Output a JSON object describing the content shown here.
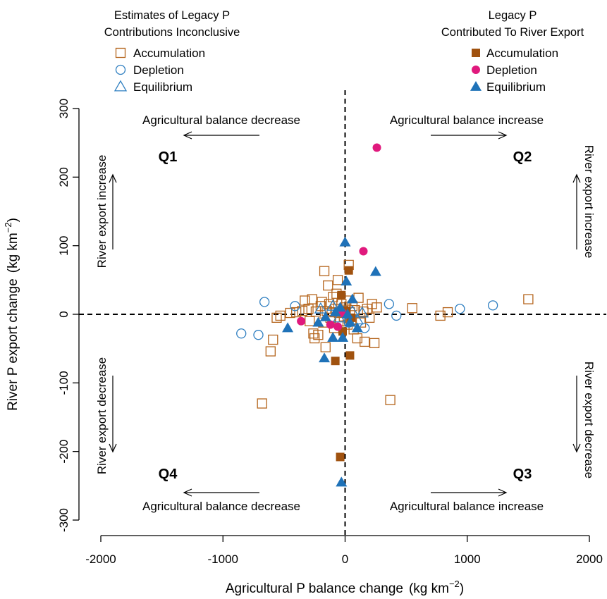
{
  "chart_data": {
    "type": "scatter",
    "xlabel": "Agricultural P balance change",
    "xlabel_unit": "(kg km",
    "ylabel": "River P export change",
    "ylabel_unit": "(kg km",
    "unit_exponent": "−2",
    "xlim": [
      -2000,
      2000
    ],
    "ylim": [
      -300,
      300
    ],
    "x_ticks": [
      -2000,
      -1000,
      0,
      1000,
      2000
    ],
    "y_ticks": [
      -300,
      -200,
      -100,
      0,
      100,
      200,
      300
    ],
    "x_tick_labels": [
      "-2000",
      "-1000",
      "0",
      "1000",
      "2000"
    ],
    "y_tick_labels": [
      "-300",
      "-200",
      "-100",
      "0",
      "100",
      "200",
      "300"
    ],
    "grid": false,
    "reference_lines": {
      "x": 0,
      "y": 0,
      "style": "dashed"
    },
    "legends": [
      {
        "position": "top-left",
        "title_line1": "Estimates of Legacy P",
        "title_line2": "Contributions Inconclusive",
        "entries": [
          "Accumulation",
          "Depletion",
          "Equilibrium"
        ]
      },
      {
        "position": "top-right",
        "title_line1": "Legacy P",
        "title_line2": "Contributed To River Export",
        "entries": [
          "Accumulation",
          "Depletion",
          "Equilibrium"
        ]
      }
    ],
    "quadrants": {
      "Q1": {
        "label": "Q1",
        "balance_text": "Agricultural balance decrease",
        "river_text": "River export increase"
      },
      "Q2": {
        "label": "Q2",
        "balance_text": "Agricultural balance increase",
        "river_text": "River export increase"
      },
      "Q3": {
        "label": "Q3",
        "balance_text": "Agricultural balance increase",
        "river_text": "River export decrease"
      },
      "Q4": {
        "label": "Q4",
        "balance_text": "Agricultural balance decrease",
        "river_text": "River export decrease"
      }
    },
    "colors": {
      "accumulation": "#b5651d",
      "accumulation_fill": "#a0520f",
      "depletion": "#e0197d",
      "equilibrium": "#2f7fc1",
      "equilibrium_fill": "#1f72b8"
    },
    "series": [
      {
        "name": "Accumulation",
        "group": "Estimates of Legacy P Contributions Inconclusive",
        "marker": "open-square",
        "points": [
          [
            -680,
            -130
          ],
          [
            370,
            -125
          ],
          [
            -590,
            -37
          ],
          [
            -610,
            -54
          ],
          [
            -560,
            -5
          ],
          [
            -530,
            -2
          ],
          [
            -450,
            2
          ],
          [
            -400,
            3
          ],
          [
            -350,
            5
          ],
          [
            -330,
            20
          ],
          [
            -300,
            8
          ],
          [
            -290,
            -10
          ],
          [
            -270,
            22
          ],
          [
            -260,
            -28
          ],
          [
            -250,
            -35
          ],
          [
            -240,
            4
          ],
          [
            -220,
            -30
          ],
          [
            -200,
            12
          ],
          [
            -190,
            18
          ],
          [
            -180,
            -12
          ],
          [
            -170,
            63
          ],
          [
            -160,
            -48
          ],
          [
            -150,
            5
          ],
          [
            -140,
            42
          ],
          [
            -130,
            15
          ],
          [
            -120,
            -5
          ],
          [
            -110,
            3
          ],
          [
            -100,
            25
          ],
          [
            -90,
            -20
          ],
          [
            -80,
            8
          ],
          [
            -70,
            30
          ],
          [
            -60,
            50
          ],
          [
            -50,
            2
          ],
          [
            -40,
            -10
          ],
          [
            -30,
            15
          ],
          [
            -20,
            5
          ],
          [
            -10,
            -3
          ],
          [
            0,
            10
          ],
          [
            10,
            20
          ],
          [
            20,
            -15
          ],
          [
            30,
            72
          ],
          [
            40,
            3
          ],
          [
            50,
            -8
          ],
          [
            60,
            12
          ],
          [
            70,
            -22
          ],
          [
            80,
            6
          ],
          [
            100,
            -35
          ],
          [
            110,
            24
          ],
          [
            130,
            -12
          ],
          [
            150,
            4
          ],
          [
            160,
            -40
          ],
          [
            180,
            8
          ],
          [
            200,
            -5
          ],
          [
            220,
            15
          ],
          [
            240,
            -42
          ],
          [
            260,
            10
          ],
          [
            550,
            9
          ],
          [
            780,
            -2
          ],
          [
            840,
            3
          ],
          [
            1500,
            22
          ]
        ]
      },
      {
        "name": "Depletion",
        "group": "Estimates of Legacy P Contributions Inconclusive",
        "marker": "open-circle",
        "points": [
          [
            -850,
            -28
          ],
          [
            -710,
            -30
          ],
          [
            -660,
            18
          ],
          [
            -410,
            12
          ],
          [
            -20,
            5
          ],
          [
            30,
            -12
          ],
          [
            160,
            -20
          ],
          [
            360,
            15
          ],
          [
            420,
            -2
          ],
          [
            940,
            8
          ],
          [
            1210,
            13
          ]
        ]
      },
      {
        "name": "Equilibrium",
        "group": "Estimates of Legacy P Contributions Inconclusive",
        "marker": "open-triangle",
        "points": [
          [
            -200,
            8
          ],
          [
            -100,
            12
          ],
          [
            -50,
            -5
          ],
          [
            60,
            4
          ],
          [
            100,
            -8
          ],
          [
            140,
            2
          ]
        ]
      },
      {
        "name": "Accumulation",
        "group": "Legacy P Contributed To River Export",
        "marker": "filled-square",
        "points": [
          [
            -40,
            -208
          ],
          [
            -80,
            -68
          ],
          [
            40,
            -60
          ],
          [
            30,
            64
          ],
          [
            -30,
            28
          ],
          [
            -20,
            -25
          ],
          [
            10,
            5
          ],
          [
            50,
            -5
          ]
        ]
      },
      {
        "name": "Depletion",
        "group": "Legacy P Contributed To River Export",
        "marker": "filled-circle",
        "points": [
          [
            260,
            243
          ],
          [
            150,
            92
          ],
          [
            -360,
            -10
          ],
          [
            -120,
            -15
          ],
          [
            -60,
            -18
          ],
          [
            -20,
            2
          ]
        ]
      },
      {
        "name": "Equilibrium",
        "group": "Legacy P Contributed To River Export",
        "marker": "filled-triangle",
        "points": [
          [
            0,
            105
          ],
          [
            250,
            62
          ],
          [
            10,
            48
          ],
          [
            -30,
            -245
          ],
          [
            -170,
            -64
          ],
          [
            -470,
            -20
          ],
          [
            -100,
            -34
          ],
          [
            -20,
            -34
          ],
          [
            -220,
            -12
          ],
          [
            -160,
            -4
          ],
          [
            -80,
            3
          ],
          [
            40,
            -12
          ],
          [
            100,
            -20
          ],
          [
            60,
            22
          ],
          [
            -40,
            10
          ],
          [
            20,
            0
          ]
        ]
      }
    ]
  }
}
